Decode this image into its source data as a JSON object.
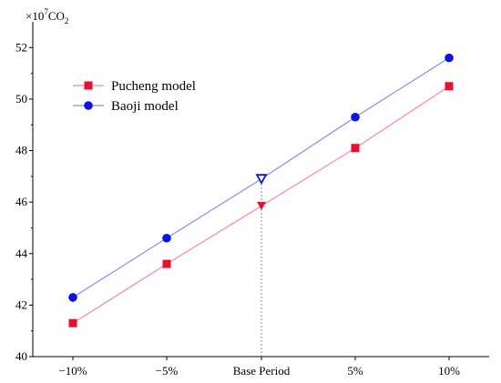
{
  "chart_data": {
    "type": "line",
    "title": "",
    "xlabel": "",
    "ylabel": "",
    "y_unit": {
      "prefix": "×10",
      "exponent": "7",
      "species": "CO",
      "subscript": "2"
    },
    "categories": [
      "−10%",
      "−5%",
      "Base Period",
      "5%",
      "10%"
    ],
    "ylim": [
      40,
      53
    ],
    "yticks": [
      40,
      42,
      44,
      46,
      48,
      50,
      52
    ],
    "grid": false,
    "legend_position": "top-left",
    "base_period_marker": true,
    "series": [
      {
        "name": "Pucheng model",
        "values": [
          41.3,
          43.6,
          45.85,
          48.1,
          50.5
        ],
        "color": "#e8112d",
        "line_color": "#ff86a6",
        "marker": "square",
        "base_marker": "triangle-down"
      },
      {
        "name": "Baoji model",
        "values": [
          42.3,
          44.6,
          46.9,
          49.3,
          51.6
        ],
        "color": "#0a14e6",
        "line_color": "#8a8cf0",
        "marker": "circle",
        "base_marker": "triangle-down-open"
      }
    ]
  }
}
